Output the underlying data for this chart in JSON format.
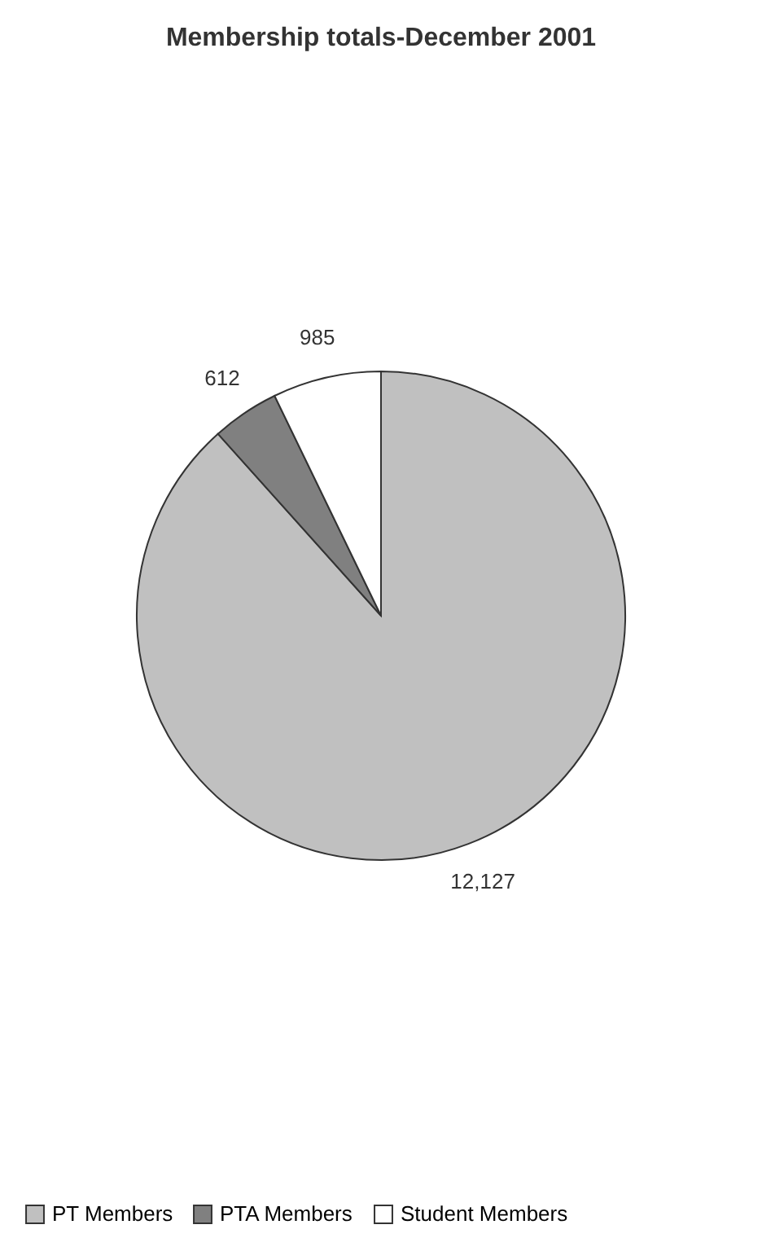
{
  "chart_data": {
    "type": "pie",
    "title": "Membership totals-December 2001",
    "categories": [
      "PT Members",
      "PTA Members",
      "Student Members"
    ],
    "values": [
      12127,
      612,
      985
    ],
    "colors": [
      "#c0c0c0",
      "#808080",
      "#ffffff"
    ],
    "value_labels": [
      "12,127",
      "612",
      "985"
    ],
    "legend": "bottom"
  }
}
